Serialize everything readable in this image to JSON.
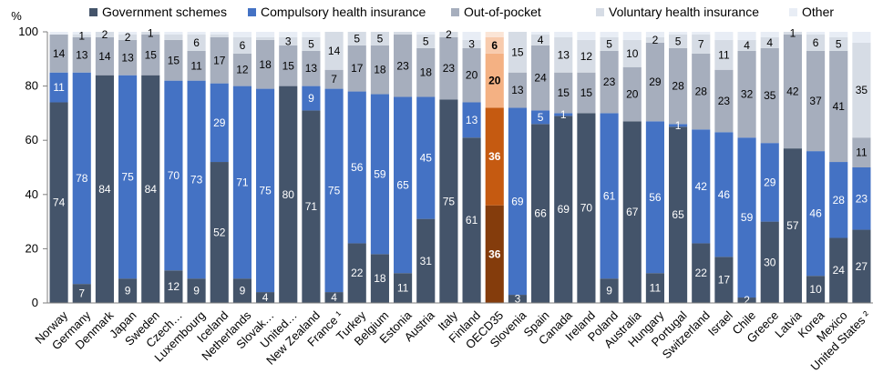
{
  "chart_data": {
    "type": "bar",
    "stacked": true,
    "ylabel": "%",
    "ylim": [
      0,
      100
    ],
    "yticks": [
      0,
      20,
      40,
      60,
      80,
      100
    ],
    "legend_position": "top",
    "categories": [
      "Norway",
      "Germany",
      "Denmark",
      "Japan",
      "Sweden",
      "Czech…",
      "Luxembourg",
      "Iceland",
      "Netherlands",
      "Slovak…",
      "United…",
      "New Zealand",
      "France ¹",
      "Turkey",
      "Belgium",
      "Estonia",
      "Austria",
      "Italy",
      "Finland",
      "OECD35",
      "Slovenia",
      "Spain",
      "Canada",
      "Ireland",
      "Poland",
      "Australia",
      "Hungary",
      "Portugal",
      "Switzerland",
      "Israel",
      "Chile",
      "Greece",
      "Latvia",
      "Korea",
      "Mexico",
      "United States ²"
    ],
    "highlight_category": "OECD35",
    "series": [
      {
        "name": "Government schemes",
        "color": "#44546a",
        "highlight_color": "#843c0c",
        "values": [
          74,
          7,
          84,
          9,
          84,
          12,
          9,
          52,
          9,
          4,
          80,
          71,
          4,
          22,
          18,
          11,
          31,
          75,
          61,
          36,
          3,
          66,
          69,
          70,
          9,
          67,
          11,
          65,
          22,
          17,
          2,
          30,
          57,
          10,
          24,
          27
        ]
      },
      {
        "name": "Compulsory health insurance",
        "color": "#4472c4",
        "highlight_color": "#c55a11",
        "values": [
          11,
          78,
          0,
          75,
          0,
          70,
          73,
          29,
          71,
          75,
          0,
          9,
          75,
          56,
          59,
          65,
          45,
          0,
          13,
          36,
          69,
          5,
          1,
          0,
          61,
          0,
          56,
          1,
          42,
          46,
          59,
          29,
          0,
          46,
          28,
          23
        ]
      },
      {
        "name": "Out-of-pocket",
        "color": "#a6aebd",
        "highlight_color": "#f4b183",
        "values": [
          14,
          13,
          14,
          13,
          15,
          15,
          11,
          17,
          12,
          18,
          15,
          13,
          7,
          17,
          18,
          23,
          18,
          23,
          20,
          20,
          13,
          24,
          15,
          15,
          23,
          20,
          29,
          28,
          28,
          23,
          32,
          35,
          42,
          37,
          41,
          11
        ]
      },
      {
        "name": "Voluntary health insurance",
        "color": "#d6dce5",
        "highlight_color": "#f8cbad",
        "values": [
          0,
          1,
          2,
          2,
          1,
          2,
          6,
          1,
          6,
          1,
          3,
          5,
          14,
          5,
          5,
          1,
          5,
          2,
          3,
          6,
          15,
          4,
          13,
          12,
          5,
          10,
          2,
          5,
          7,
          11,
          4,
          4,
          1,
          6,
          5,
          35
        ]
      },
      {
        "name": "Other",
        "color": "#e8edf5",
        "highlight_color": "#fbe5d6",
        "values": [
          1,
          1,
          0,
          1,
          0,
          1,
          1,
          1,
          2,
          2,
          2,
          2,
          0,
          0,
          0,
          0,
          1,
          0,
          3,
          2,
          0,
          1,
          2,
          3,
          2,
          3,
          2,
          1,
          1,
          3,
          3,
          2,
          0,
          1,
          2,
          4
        ]
      }
    ],
    "data_labels": [
      [
        "74",
        "11",
        "14",
        "",
        ""
      ],
      [
        "7",
        "78",
        "13",
        "1",
        ""
      ],
      [
        "84",
        "",
        "14",
        "2",
        ""
      ],
      [
        "9",
        "75",
        "13",
        "2",
        ""
      ],
      [
        "84",
        "",
        "15",
        "1",
        ""
      ],
      [
        "12",
        "70",
        "15",
        "",
        ""
      ],
      [
        "9",
        "73",
        "11",
        "6",
        ""
      ],
      [
        "52",
        "29",
        "17",
        "",
        ""
      ],
      [
        "9",
        "71",
        "12",
        "6",
        ""
      ],
      [
        "4",
        "75",
        "18",
        "",
        ""
      ],
      [
        "80",
        "",
        "15",
        "3",
        ""
      ],
      [
        "71",
        "9",
        "13",
        "5",
        ""
      ],
      [
        "4",
        "75",
        "7",
        "14",
        ""
      ],
      [
        "22",
        "56",
        "17",
        "5",
        ""
      ],
      [
        "18",
        "59",
        "18",
        "5",
        ""
      ],
      [
        "11",
        "65",
        "23",
        "",
        ""
      ],
      [
        "31",
        "45",
        "18",
        "5",
        ""
      ],
      [
        "75",
        "",
        "23",
        "2",
        ""
      ],
      [
        "61",
        "13",
        "20",
        "3",
        ""
      ],
      [
        "36",
        "36",
        "20",
        "6",
        ""
      ],
      [
        "3",
        "69",
        "13",
        "15",
        ""
      ],
      [
        "66",
        "5",
        "24",
        "4",
        ""
      ],
      [
        "69",
        "1",
        "15",
        "13",
        ""
      ],
      [
        "70",
        "",
        "15",
        "12",
        ""
      ],
      [
        "9",
        "61",
        "23",
        "5",
        ""
      ],
      [
        "67",
        "",
        "20",
        "10",
        ""
      ],
      [
        "11",
        "56",
        "29",
        "2",
        ""
      ],
      [
        "65",
        "1",
        "28",
        "5",
        ""
      ],
      [
        "22",
        "42",
        "28",
        "7",
        ""
      ],
      [
        "17",
        "46",
        "23",
        "11",
        ""
      ],
      [
        "2",
        "59",
        "32",
        "4",
        ""
      ],
      [
        "30",
        "29",
        "35",
        "4",
        ""
      ],
      [
        "57",
        "",
        "42",
        "1",
        ""
      ],
      [
        "10",
        "46",
        "37",
        "6",
        ""
      ],
      [
        "24",
        "28",
        "41",
        "5",
        ""
      ],
      [
        "27",
        "23",
        "11",
        "35",
        ""
      ]
    ]
  }
}
